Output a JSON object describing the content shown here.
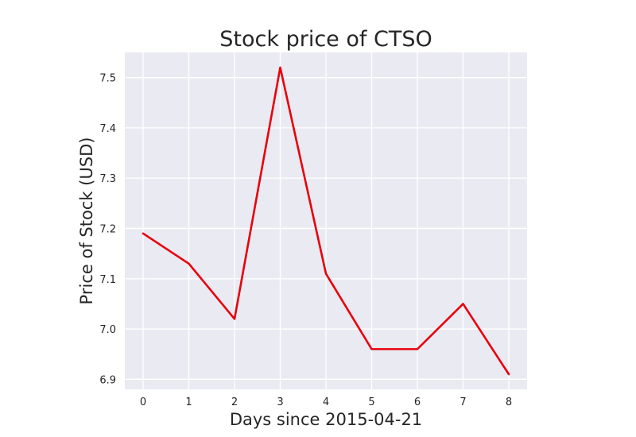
{
  "chart_data": {
    "type": "line",
    "title": "Stock price of CTSO",
    "xlabel": "Days since 2015-04-21",
    "ylabel": "Price of Stock (USD)",
    "x": [
      0,
      1,
      2,
      3,
      4,
      5,
      6,
      7,
      8
    ],
    "series": [
      {
        "values": [
          7.19,
          7.13,
          7.02,
          7.52,
          7.11,
          6.96,
          6.96,
          7.05,
          6.91
        ],
        "color": "#e8000b"
      }
    ],
    "xlim": [
      -0.4,
      8.4
    ],
    "ylim": [
      6.88,
      7.55
    ],
    "xticks": [
      0,
      1,
      2,
      3,
      4,
      5,
      6,
      7,
      8
    ],
    "yticks": [
      6.9,
      7.0,
      7.1,
      7.2,
      7.3,
      7.4,
      7.5
    ],
    "ytick_labels": [
      "6.9",
      "7.0",
      "7.1",
      "7.2",
      "7.3",
      "7.4",
      "7.5"
    ],
    "grid": true,
    "plot_background": "#eaeaf2"
  }
}
